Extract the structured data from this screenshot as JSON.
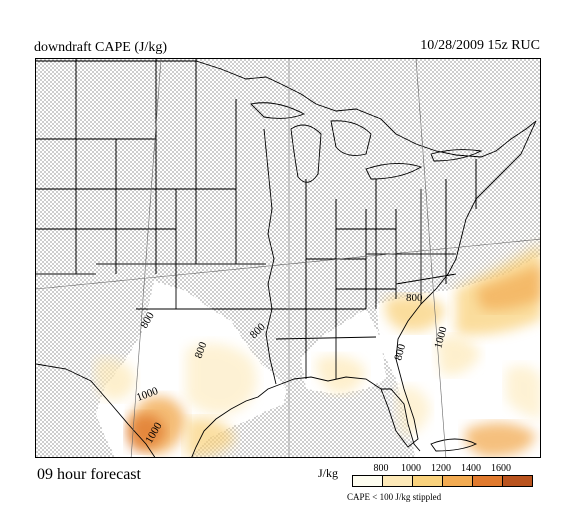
{
  "header": {
    "title": "downdraft CAPE (J/kg)",
    "run_info": "10/28/2009  15z  RUC"
  },
  "footer": {
    "forecast": "09 hour forecast",
    "units": "J/kg",
    "note": "CAPE < 100 J/kg stippled"
  },
  "legend": {
    "ticks": [
      "800",
      "1000",
      "1200",
      "1400",
      "1600"
    ],
    "colors": [
      "#fefdf0",
      "#fde9b8",
      "#f9d27d",
      "#f2ab52",
      "#e07a2e",
      "#b9531e"
    ]
  },
  "contour_labels": [
    "800",
    "800",
    "800",
    "800",
    "1000",
    "1000",
    "1000",
    "800"
  ]
}
